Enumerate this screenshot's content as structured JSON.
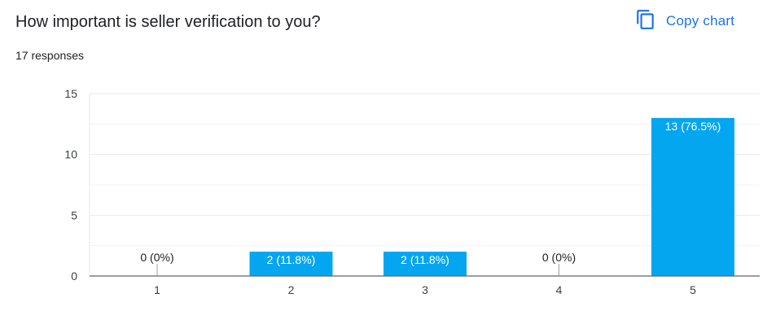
{
  "header": {
    "title": "How important is seller verification to you?",
    "responses": "17 responses"
  },
  "toolbar": {
    "copy_label": "Copy chart",
    "copy_icon": "copy-icon"
  },
  "colors": {
    "bar": "#05a6f0",
    "accent": "#1a73e8",
    "grid": "#e8eaed",
    "axis": "#5f6368"
  },
  "chart_data": {
    "type": "bar",
    "title": "How important is seller verification to you?",
    "categories": [
      "1",
      "2",
      "3",
      "4",
      "5"
    ],
    "values": [
      0,
      2,
      2,
      0,
      13
    ],
    "labels": [
      "0 (0%)",
      "2 (11.8%)",
      "2 (11.8%)",
      "0 (0%)",
      "13 (76.5%)"
    ],
    "ylim": [
      0,
      15
    ],
    "yticks": [
      0,
      5,
      10,
      15
    ],
    "xlabel": "",
    "ylabel": "",
    "grid": true,
    "legend": "none"
  }
}
